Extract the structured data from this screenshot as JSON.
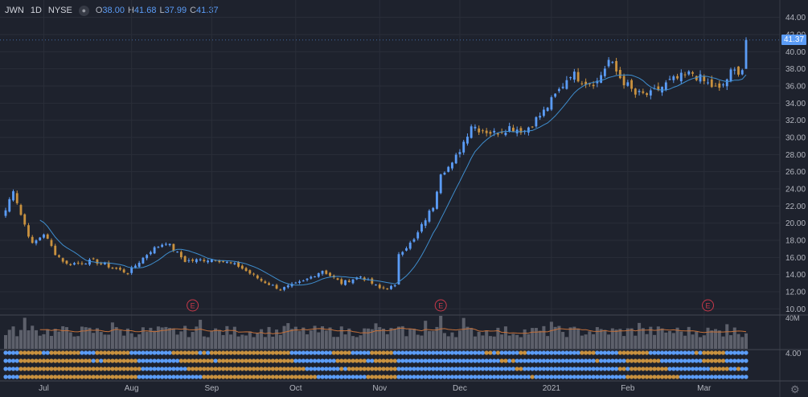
{
  "header": {
    "symbol": "JWN",
    "interval": "1D",
    "exchange": "NYSE",
    "eye_icon": "eye-icon",
    "open_label": "O",
    "open": "38.00",
    "high_label": "H",
    "high": "41.68",
    "low_label": "L",
    "low": "37.99",
    "close_label": "C",
    "close": "41.37"
  },
  "last_price_label": "41.37",
  "colors": {
    "background": "#1e222d",
    "up": "#5b9cf6",
    "down": "#c8913f",
    "ma": "#3f8ecf",
    "volume_ma": "#c4703a",
    "volume_bar": "#5d606b",
    "grid": "#2a2e39",
    "earnings": "#c8394a"
  },
  "settings_icon": "gear-icon",
  "chart_data": {
    "type": "candlestick",
    "price_axis": {
      "ticks": [
        "44.00",
        "42.00",
        "40.00",
        "38.00",
        "36.00",
        "34.00",
        "32.00",
        "30.00",
        "28.00",
        "26.00",
        "24.00",
        "22.00",
        "20.00",
        "18.00",
        "16.00",
        "14.00",
        "12.00",
        "10.00"
      ],
      "ylim": [
        9,
        45
      ]
    },
    "x_axis": {
      "labels": [
        "Jul",
        "Aug",
        "Sep",
        "Oct",
        "Nov",
        "Dec",
        "2021",
        "Feb",
        "Mar"
      ]
    },
    "earnings_markers": [
      "E",
      "E",
      "E"
    ],
    "volume_axis": {
      "label": "40M"
    },
    "indicator_axis": {
      "label": "4.00"
    },
    "series": [
      {
        "name": "JWN",
        "type": "candlestick",
        "anchors": [
          [
            "2020-06-17",
            21.5
          ],
          [
            "2020-06-19",
            24.0
          ],
          [
            "2020-06-23",
            21.0
          ],
          [
            "2020-06-26",
            17.5
          ],
          [
            "2020-07-01",
            18.8
          ],
          [
            "2020-07-06",
            16.5
          ],
          [
            "2020-07-09",
            15.2
          ],
          [
            "2020-07-20",
            15.6
          ],
          [
            "2020-07-31",
            14.2
          ],
          [
            "2020-08-10",
            16.8
          ],
          [
            "2020-08-14",
            17.8
          ],
          [
            "2020-08-21",
            15.6
          ],
          [
            "2020-09-02",
            15.8
          ],
          [
            "2020-09-10",
            15.0
          ],
          [
            "2020-09-18",
            13.3
          ],
          [
            "2020-09-25",
            12.3
          ],
          [
            "2020-10-05",
            13.2
          ],
          [
            "2020-10-12",
            14.5
          ],
          [
            "2020-10-19",
            13.0
          ],
          [
            "2020-10-26",
            13.8
          ],
          [
            "2020-11-02",
            12.4
          ],
          [
            "2020-11-06",
            12.6
          ],
          [
            "2020-11-09",
            16.5
          ],
          [
            "2020-11-13",
            18.0
          ],
          [
            "2020-11-18",
            20.5
          ],
          [
            "2020-11-20",
            22.0
          ],
          [
            "2020-11-24",
            26.0
          ],
          [
            "2020-11-27",
            26.8
          ],
          [
            "2020-12-02",
            29.5
          ],
          [
            "2020-12-04",
            31.5
          ],
          [
            "2020-12-08",
            31.0
          ],
          [
            "2020-12-14",
            30.5
          ],
          [
            "2020-12-18",
            31.2
          ],
          [
            "2020-12-24",
            30.8
          ],
          [
            "2020-12-31",
            33.0
          ],
          [
            "2021-01-06",
            35.5
          ],
          [
            "2021-01-11",
            37.5
          ],
          [
            "2021-01-15",
            36.5
          ],
          [
            "2021-01-20",
            36.5
          ],
          [
            "2021-01-25",
            39.0
          ],
          [
            "2021-01-28",
            37.0
          ],
          [
            "2021-02-03",
            35.0
          ],
          [
            "2021-02-09",
            35.0
          ],
          [
            "2021-02-16",
            36.5
          ],
          [
            "2021-02-24",
            37.5
          ],
          [
            "2021-03-01",
            36.5
          ],
          [
            "2021-03-05",
            35.5
          ],
          [
            "2021-03-10",
            37.5
          ],
          [
            "2021-03-15",
            38.0
          ],
          [
            "2021-03-16",
            41.37
          ]
        ],
        "last": {
          "open": 38.0,
          "high": 41.68,
          "low": 37.99,
          "close": 41.37
        }
      },
      {
        "name": "MA",
        "type": "line",
        "period": 10
      },
      {
        "name": "Volume",
        "type": "bar"
      }
    ]
  }
}
